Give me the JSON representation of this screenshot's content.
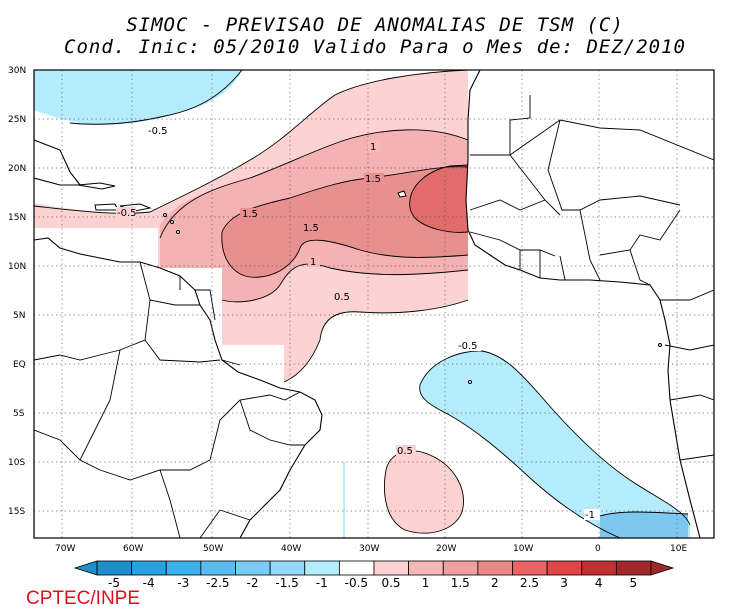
{
  "title_line1": "SIMOC - PREVISAO DE ANOMALIAS DE TSM (C)",
  "title_line2": "Cond. Inic: 05/2010   Valido Para o Mes de: DEZ/2010",
  "footer": "CPTEC/INPE",
  "lat_labels": [
    "30N",
    "25N",
    "20N",
    "15N",
    "10N",
    "5N",
    "EQ",
    "5S",
    "10S",
    "15S"
  ],
  "lon_labels": [
    "70W",
    "60W",
    "50W",
    "40W",
    "30W",
    "20W",
    "10W",
    "0",
    "10E"
  ],
  "contour_labels": [
    "-0.5",
    "1",
    "1.5",
    "1.5",
    "1.5",
    "1",
    "0.5",
    "-0.5",
    "0.5",
    "-1",
    "-0.5"
  ],
  "colorbar": {
    "labels": [
      "-5",
      "-4",
      "-3",
      "-2.5",
      "-2",
      "-1.5",
      "-1",
      "-0.5",
      "0.5",
      "1",
      "1.5",
      "2",
      "2.5",
      "3",
      "4",
      "5"
    ],
    "colors": [
      "#1e8fc8",
      "#2aa0dc",
      "#3cb0ea",
      "#5abbf0",
      "#7acbf4",
      "#96d8f8",
      "#b4ecfc",
      "#ffffff",
      "#fcd2d2",
      "#f8b8b8",
      "#f0a0a0",
      "#e88888",
      "#e86464",
      "#e04848",
      "#c03030",
      "#a02828"
    ]
  },
  "colors": {
    "land": "#ffffff",
    "pos_0_5": "#fcd2d2",
    "pos_1": "#f4b2b2",
    "pos_1_5": "#e89090",
    "pos_2": "#e26b6b",
    "neg_0_5": "#b4ecfc",
    "neg_1": "#7ec8f0",
    "footer": "#e0101a"
  }
}
